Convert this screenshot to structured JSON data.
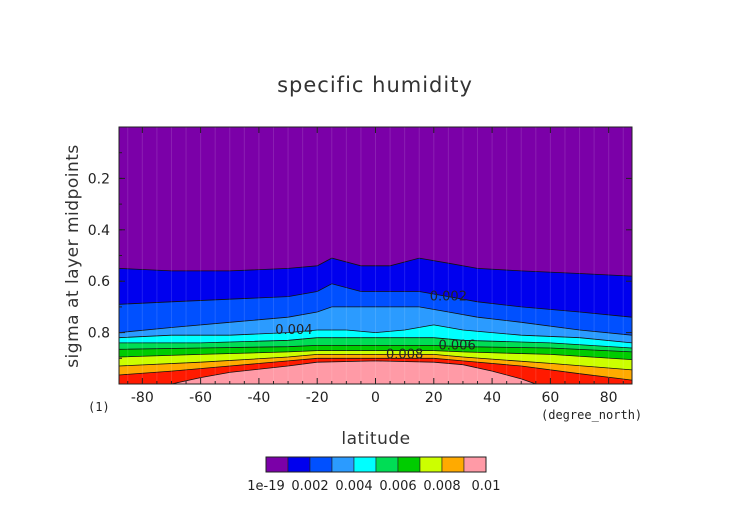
{
  "chart_data": {
    "type": "heatmap",
    "subtype": "filled-contour",
    "title": "specific humidity",
    "xlabel": "latitude",
    "ylabel": "sigma at layer midpoints",
    "x_units": "(degree_north)",
    "y_units": "(1)",
    "xlim": [
      -88,
      88
    ],
    "ylim": [
      0,
      1
    ],
    "y_inverted": true,
    "x_ticks": [
      -80,
      -60,
      -40,
      -20,
      0,
      20,
      40,
      60,
      80
    ],
    "y_ticks": [
      0.2,
      0.4,
      0.6,
      0.8
    ],
    "levels": [
      1e-19,
      0.001,
      0.002,
      0.003,
      0.004,
      0.005,
      0.006,
      0.007,
      0.008,
      0.009,
      0.01
    ],
    "level_colors": [
      "#7b00a8",
      "#0000ee",
      "#0050ff",
      "#2b9bff",
      "#00ffff",
      "#00dd55",
      "#00cc00",
      "#ccff00",
      "#ffaa00",
      "#ff1a00",
      "#ff9aa6"
    ],
    "colorbar_labels": [
      "1e-19",
      "0.002",
      "0.004",
      "0.006",
      "0.008",
      "0.01"
    ],
    "colorbar_label_levels": [
      0,
      0.002,
      0.004,
      0.006,
      0.008,
      0.01
    ],
    "contour_labels": [
      {
        "text": "0.002",
        "lat": 25,
        "sigma": 0.66
      },
      {
        "text": "0.004",
        "lat": -28,
        "sigma": 0.79
      },
      {
        "text": "0.006",
        "lat": 28,
        "sigma": 0.85
      },
      {
        "text": "0.008",
        "lat": 10,
        "sigma": 0.885
      }
    ],
    "boundaries": [
      {
        "level": 0.001,
        "lat": [
          -88,
          -70,
          -50,
          -30,
          -20,
          -15,
          -5,
          5,
          15,
          25,
          35,
          50,
          70,
          88
        ],
        "sigma": [
          0.55,
          0.56,
          0.56,
          0.55,
          0.54,
          0.51,
          0.54,
          0.54,
          0.51,
          0.53,
          0.55,
          0.56,
          0.57,
          0.58
        ]
      },
      {
        "level": 0.002,
        "lat": [
          -88,
          -70,
          -50,
          -30,
          -20,
          -15,
          -5,
          5,
          15,
          25,
          35,
          50,
          70,
          88
        ],
        "sigma": [
          0.69,
          0.68,
          0.67,
          0.66,
          0.64,
          0.61,
          0.64,
          0.64,
          0.64,
          0.66,
          0.68,
          0.7,
          0.72,
          0.74
        ]
      },
      {
        "level": 0.003,
        "lat": [
          -88,
          -70,
          -50,
          -30,
          -20,
          -15,
          -5,
          5,
          15,
          25,
          35,
          50,
          70,
          88
        ],
        "sigma": [
          0.8,
          0.78,
          0.76,
          0.74,
          0.72,
          0.7,
          0.7,
          0.7,
          0.7,
          0.72,
          0.74,
          0.76,
          0.79,
          0.81
        ]
      },
      {
        "level": 0.004,
        "lat": [
          -88,
          -70,
          -50,
          -30,
          -20,
          -10,
          0,
          10,
          20,
          30,
          40,
          50,
          70,
          88
        ],
        "sigma": [
          0.82,
          0.81,
          0.81,
          0.8,
          0.79,
          0.79,
          0.8,
          0.79,
          0.77,
          0.79,
          0.8,
          0.81,
          0.82,
          0.84
        ]
      },
      {
        "level": 0.005,
        "lat": [
          -88,
          -60,
          -30,
          -20,
          0,
          20,
          30,
          60,
          88
        ],
        "sigma": [
          0.84,
          0.84,
          0.83,
          0.82,
          0.82,
          0.82,
          0.83,
          0.84,
          0.86
        ]
      },
      {
        "level": 0.006,
        "lat": [
          -88,
          -60,
          -30,
          -20,
          0,
          20,
          30,
          60,
          88
        ],
        "sigma": [
          0.865,
          0.86,
          0.855,
          0.85,
          0.85,
          0.85,
          0.855,
          0.86,
          0.875
        ]
      },
      {
        "level": 0.007,
        "lat": [
          -88,
          -60,
          -30,
          -20,
          0,
          20,
          30,
          60,
          88
        ],
        "sigma": [
          0.895,
          0.885,
          0.875,
          0.87,
          0.87,
          0.87,
          0.875,
          0.885,
          0.905
        ]
      },
      {
        "level": 0.008,
        "lat": [
          -88,
          -60,
          -30,
          -20,
          0,
          20,
          30,
          60,
          88
        ],
        "sigma": [
          0.93,
          0.915,
          0.895,
          0.885,
          0.885,
          0.885,
          0.895,
          0.92,
          0.945
        ]
      },
      {
        "level": 0.009,
        "lat": [
          -88,
          -70,
          -50,
          -30,
          -20,
          0,
          20,
          30,
          50,
          70,
          88
        ],
        "sigma": [
          0.965,
          0.95,
          0.93,
          0.91,
          0.9,
          0.9,
          0.9,
          0.91,
          0.93,
          0.96,
          0.985
        ]
      },
      {
        "level": 0.01,
        "lat": [
          -70,
          -60,
          -50,
          -30,
          -20,
          0,
          20,
          30,
          40,
          50,
          55
        ],
        "sigma": [
          1.0,
          0.975,
          0.955,
          0.93,
          0.915,
          0.91,
          0.915,
          0.925,
          0.95,
          0.98,
          1.0
        ]
      }
    ]
  }
}
